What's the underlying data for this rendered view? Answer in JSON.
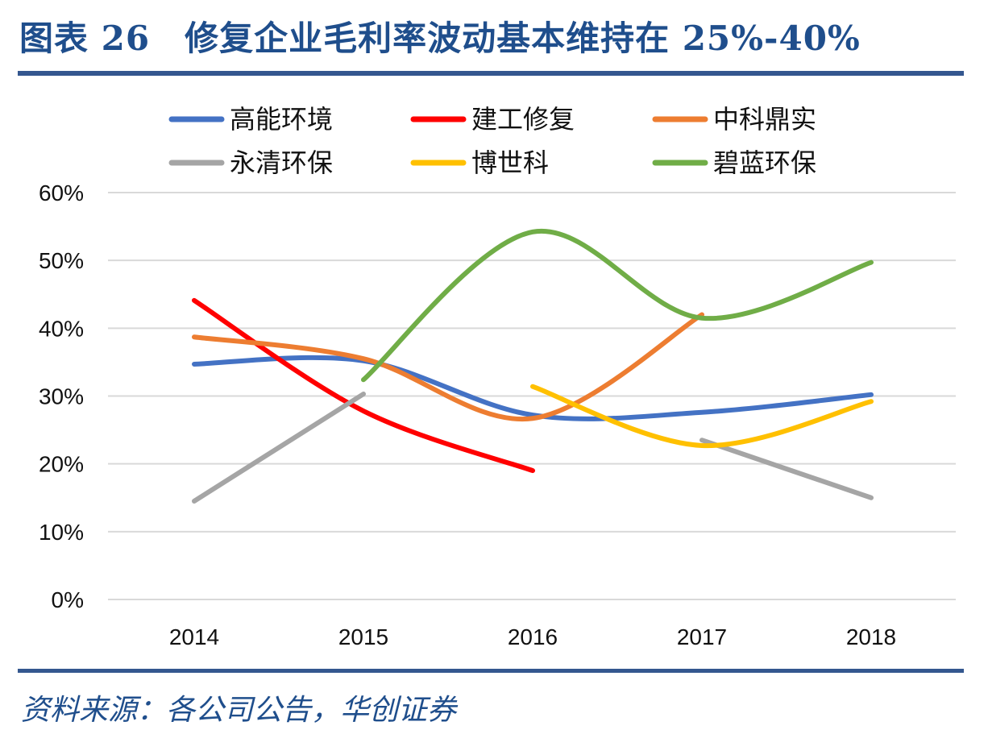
{
  "title": "图表 26　修复企业毛利率波动基本维持在 25%-40%",
  "source": "资料来源：各公司公告，华创证券",
  "chart_data": {
    "type": "line",
    "categories": [
      "2014",
      "2015",
      "2016",
      "2017",
      "2018"
    ],
    "y_ticks": [
      "0%",
      "10%",
      "20%",
      "30%",
      "40%",
      "50%",
      "60%"
    ],
    "ylim": [
      0,
      60
    ],
    "grid": true,
    "legend_position": "top",
    "series": [
      {
        "name": "高能环境",
        "color": "#4472c4",
        "values": [
          34.7,
          35.2,
          27.2,
          27.6,
          30.2
        ]
      },
      {
        "name": "建工修复",
        "color": "#ff0000",
        "values": [
          44.1,
          27.8,
          19.0,
          null,
          null
        ]
      },
      {
        "name": "中科鼎实",
        "color": "#ed7d31",
        "values": [
          38.7,
          35.5,
          26.7,
          42.0,
          null
        ]
      },
      {
        "name": "永清环保",
        "color": "#a5a5a5",
        "values": [
          14.5,
          30.3,
          null,
          23.5,
          15.0
        ]
      },
      {
        "name": "博世科",
        "color": "#ffc000",
        "values": [
          null,
          null,
          31.4,
          22.7,
          29.2
        ]
      },
      {
        "name": "碧蓝环保",
        "color": "#70ad47",
        "values": [
          null,
          32.4,
          54.2,
          41.5,
          49.7
        ]
      }
    ]
  }
}
